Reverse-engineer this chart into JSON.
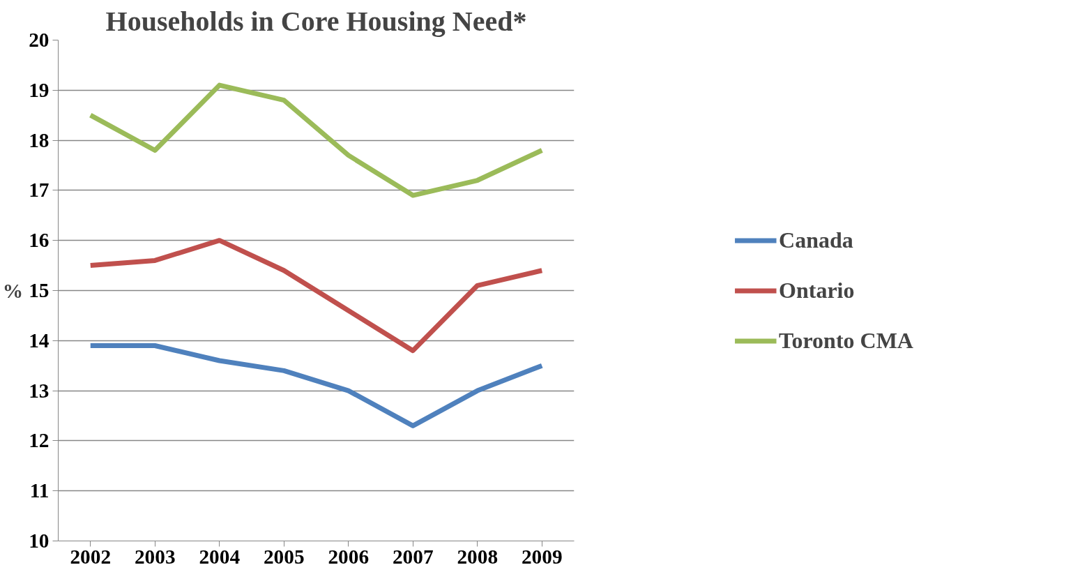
{
  "chart_data": {
    "type": "line",
    "title": "Households in Core Housing Need*",
    "ylabel": "%",
    "categories": [
      "2002",
      "2003",
      "2004",
      "2005",
      "2006",
      "2007",
      "2008",
      "2009"
    ],
    "series": [
      {
        "name": "Canada",
        "color": "#4f81bd",
        "values": [
          13.9,
          13.9,
          13.6,
          13.4,
          13.0,
          12.3,
          13.0,
          13.5
        ]
      },
      {
        "name": "Ontario",
        "color": "#c0504d",
        "values": [
          15.5,
          15.6,
          16.0,
          15.4,
          14.6,
          13.8,
          15.1,
          15.4
        ]
      },
      {
        "name": "Toronto CMA",
        "color": "#9bbb59",
        "values": [
          18.5,
          17.8,
          19.1,
          18.8,
          17.7,
          16.9,
          17.2,
          17.8
        ]
      }
    ],
    "ylim": [
      10,
      20
    ],
    "yticks": [
      10,
      11,
      12,
      13,
      14,
      15,
      16,
      17,
      18,
      19,
      20
    ],
    "grid": "y",
    "legend": "right",
    "marker": "none",
    "line_style": "solid"
  }
}
